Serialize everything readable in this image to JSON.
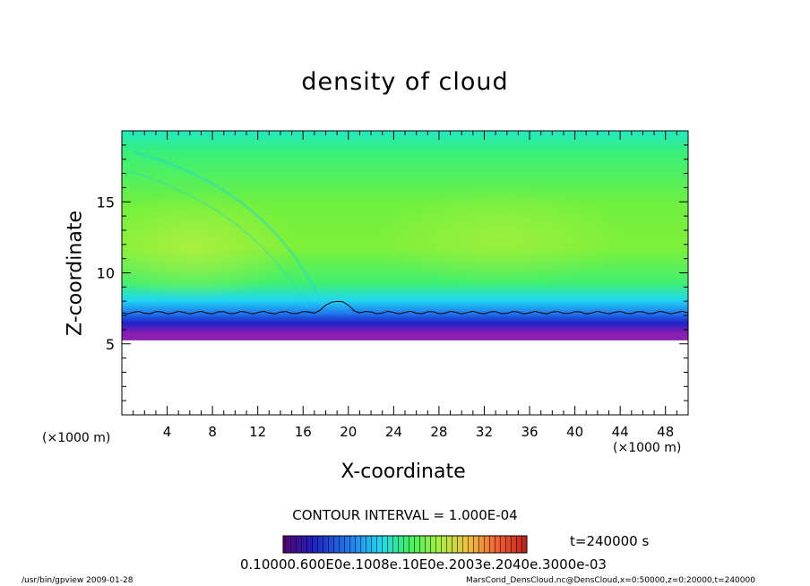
{
  "chart_data": {
    "type": "heatmap",
    "title": "density of cloud",
    "xlabel": "X-coordinate",
    "ylabel": "Z-coordinate",
    "x_unit_left": "(×1000 m)",
    "x_unit_right": "(×1000 m)",
    "xlim": [
      0,
      50
    ],
    "ylim": [
      0,
      20
    ],
    "x_ticks": [
      4,
      8,
      12,
      16,
      20,
      24,
      28,
      32,
      36,
      40,
      44,
      48
    ],
    "x_tick_labels": [
      "4",
      "8",
      "12",
      "16",
      "20",
      "24",
      "28",
      "32",
      "36",
      "40",
      "44",
      "48"
    ],
    "y_ticks": [
      5,
      10,
      15
    ],
    "y_tick_labels": [
      "5",
      "10",
      "15"
    ],
    "cloud_base_z": 5.5,
    "contour_line_z": 7.2,
    "contour_interval": "CONTOUR INTERVAL = 1.000E-04",
    "time_label": "t=240000 s",
    "colorbar_labels": "0.10000.600E0e.1008e.10E0e.2003e.2040e.3000e-03",
    "colors": {
      "purple": "#8a1fb0",
      "blue": "#2020d0",
      "cyan": "#20e0f0",
      "green": "#40f060",
      "yellowgreen": "#a8f040"
    }
  },
  "footer": {
    "left": "/usr/bin/gpview   2009-01-28",
    "right": "MarsCond_DensCloud.nc@DensCloud,x=0:50000,z=0:20000,t=240000"
  }
}
